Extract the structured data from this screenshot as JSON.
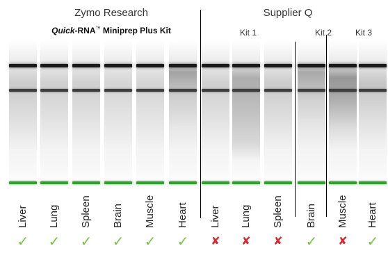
{
  "header": {
    "zymo_title": "Zymo Research",
    "zymo_product_quick": "Quick",
    "zymo_product_rest": "-RNA",
    "zymo_product_tm": "™",
    "zymo_product_tail": " Miniprep Plus Kit",
    "supplier_title": "Supplier Q"
  },
  "kits": [
    {
      "label": "Kit 1"
    },
    {
      "label": "Kit 2"
    },
    {
      "label": "Kit 3"
    }
  ],
  "lanes": [
    {
      "tissue": "Liver",
      "result": "pass"
    },
    {
      "tissue": "Lung",
      "result": "pass"
    },
    {
      "tissue": "Spleen",
      "result": "pass"
    },
    {
      "tissue": "Brain",
      "result": "pass"
    },
    {
      "tissue": "Muscle",
      "result": "pass"
    },
    {
      "tissue": "Heart",
      "result": "pass"
    },
    {
      "tissue": "Liver",
      "result": "fail"
    },
    {
      "tissue": "Lung",
      "result": "fail"
    },
    {
      "tissue": "Spleen",
      "result": "fail"
    },
    {
      "tissue": "Brain",
      "result": "pass"
    },
    {
      "tissue": "Muscle",
      "result": "fail"
    },
    {
      "tissue": "Heart",
      "result": "pass"
    }
  ],
  "symbols": {
    "pass": "✓",
    "fail": "✘"
  },
  "colors": {
    "pass": "#7ac142",
    "fail": "#d7282f",
    "marker": "#2da02d",
    "band": "#1a1a1a"
  },
  "icons": {
    "pass": "check-icon",
    "fail": "cross-icon"
  }
}
